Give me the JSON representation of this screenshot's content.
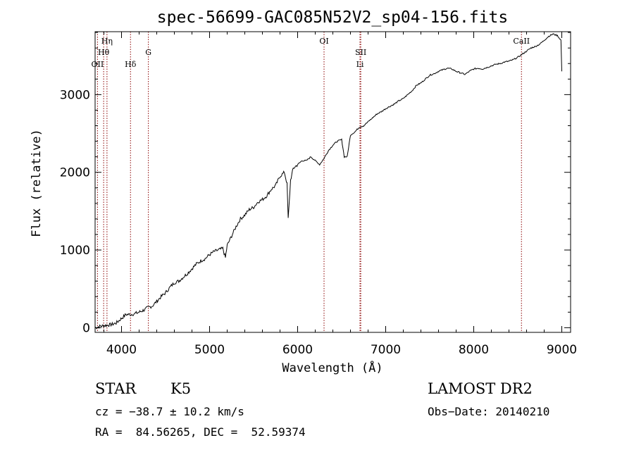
{
  "chart_data": {
    "type": "line",
    "title": "spec-56699-GAC085N52V2_sp04-156.fits",
    "xlabel": "Wavelength (Å)",
    "ylabel": "Flux (relative)",
    "xlim": [
      3700,
      9100
    ],
    "ylim": [
      -60,
      3810
    ],
    "xticks": [
      4000,
      5000,
      6000,
      7000,
      8000,
      9000
    ],
    "yticks": [
      0,
      1000,
      2000,
      3000
    ],
    "grid": false,
    "legend": "none",
    "line_color": "#000000",
    "marker_color": "#8b0000",
    "spectral_lines": [
      {
        "name": "Hη",
        "wavelength": 3835,
        "row": 0
      },
      {
        "name": "Hθ",
        "wavelength": 3797,
        "row": 1
      },
      {
        "name": "OII",
        "wavelength": 3727,
        "row": 2
      },
      {
        "name": "Hδ",
        "wavelength": 4102,
        "row": 2
      },
      {
        "name": "G",
        "wavelength": 4305,
        "row": 1
      },
      {
        "name": "OI",
        "wavelength": 6300,
        "row": 0
      },
      {
        "name": "SII",
        "wavelength": 6717,
        "row": 1
      },
      {
        "name": "Li",
        "wavelength": 6708,
        "row": 2
      },
      {
        "name": "CaII",
        "wavelength": 8542,
        "row": 0
      }
    ],
    "series": [
      {
        "x": [
          3700,
          3760,
          3820,
          3880,
          3940,
          4000,
          4050,
          4100,
          4150,
          4200,
          4260,
          4300,
          4350,
          4400,
          4450,
          4500,
          4550,
          4600,
          4650,
          4700,
          4750,
          4800,
          4850,
          4900,
          4950,
          5000,
          5050,
          5100,
          5150,
          5180,
          5200,
          5250,
          5300,
          5350,
          5400,
          5450,
          5500,
          5550,
          5600,
          5650,
          5700,
          5750,
          5800,
          5850,
          5880,
          5893,
          5920,
          5950,
          6000,
          6050,
          6100,
          6150,
          6200,
          6250,
          6300,
          6350,
          6400,
          6450,
          6500,
          6530,
          6563,
          6600,
          6650,
          6700,
          6750,
          6800,
          6850,
          6900,
          6950,
          7000,
          7050,
          7100,
          7150,
          7200,
          7250,
          7300,
          7350,
          7400,
          7450,
          7500,
          7550,
          7600,
          7650,
          7700,
          7750,
          7800,
          7850,
          7900,
          7950,
          8000,
          8050,
          8100,
          8150,
          8200,
          8250,
          8300,
          8350,
          8400,
          8450,
          8500,
          8550,
          8600,
          8650,
          8700,
          8750,
          8800,
          8850,
          8900,
          8950,
          8990,
          9000
        ],
        "y": [
          0,
          20,
          30,
          40,
          60,
          120,
          170,
          170,
          180,
          200,
          230,
          260,
          280,
          340,
          400,
          450,
          520,
          580,
          600,
          650,
          700,
          760,
          820,
          860,
          890,
          940,
          980,
          1000,
          1020,
          900,
          1060,
          1180,
          1300,
          1400,
          1450,
          1520,
          1550,
          1620,
          1650,
          1700,
          1780,
          1830,
          1950,
          2000,
          1850,
          1400,
          1900,
          2050,
          2100,
          2150,
          2150,
          2200,
          2150,
          2100,
          2180,
          2280,
          2350,
          2400,
          2420,
          2200,
          2200,
          2480,
          2520,
          2580,
          2600,
          2650,
          2700,
          2750,
          2780,
          2820,
          2850,
          2880,
          2920,
          2950,
          3000,
          3050,
          3120,
          3150,
          3200,
          3250,
          3270,
          3300,
          3320,
          3340,
          3330,
          3300,
          3280,
          3260,
          3300,
          3330,
          3340,
          3330,
          3350,
          3370,
          3390,
          3400,
          3420,
          3430,
          3450,
          3480,
          3520,
          3560,
          3600,
          3620,
          3650,
          3700,
          3750,
          3780,
          3760,
          3700,
          3300
        ]
      }
    ]
  },
  "info": {
    "object_class": "STAR",
    "subclass": "K5",
    "survey": "LAMOST DR2",
    "redshift": "cz = −38.7 ± 10.2 km/s",
    "obs_date": "Obs−Date: 20140210",
    "coords": "RA =  84.56265, DEC =  52.59374"
  }
}
